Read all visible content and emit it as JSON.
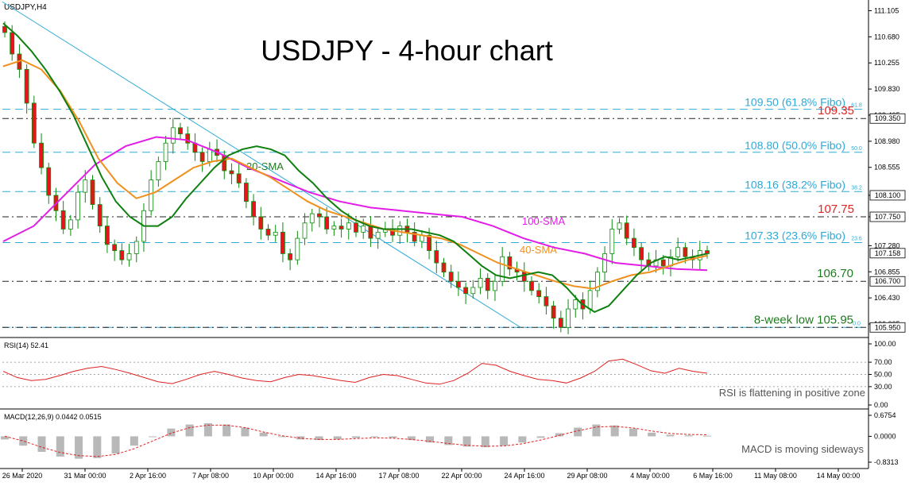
{
  "chart_data": {
    "type": "line",
    "symbol_label": "USDJPY,H4",
    "title": "USDJPY - 4-hour chart",
    "colors": {
      "candle_up": "#ffffff",
      "candle_down": "#e8141c",
      "candle_outline": "#0b8b0b",
      "sma20": "#0f7f0f",
      "sma40": "#f0901e",
      "sma100": "#e21ee6",
      "fibo": "#2eaad8",
      "trend": "#2eaad8",
      "level_red": "#e02525",
      "level_green": "#1e7b1e",
      "rsi": "#e02020",
      "macd_hist": "#b8b8b8",
      "macd_signal": "#e02020",
      "axis_text": "#000000"
    },
    "x_labels": [
      "26 Mar 2020",
      "31 Mar 00:00",
      "2 Apr 16:00",
      "7 Apr 08:00",
      "10 Apr 00:00",
      "14 Apr 16:00",
      "17 Apr 08:00",
      "22 Apr 00:00",
      "24 Apr 16:00",
      "29 Apr 08:00",
      "4 May 00:00",
      "6 May 16:00",
      "11 May 08:00",
      "14 May 00:00"
    ],
    "y_ticks": [
      "111.105",
      "110.680",
      "110.255",
      "109.830",
      "109.405",
      "108.980",
      "108.555",
      "108.100",
      "107.750",
      "107.280",
      "106.855",
      "106.430",
      "106.005"
    ],
    "y_ticks_values": [
      111.105,
      110.68,
      110.255,
      109.83,
      109.405,
      108.98,
      108.555,
      108.1,
      107.75,
      107.28,
      106.855,
      106.43,
      106.005
    ],
    "ylim": [
      105.85,
      111.15
    ],
    "price_tags": [
      "109.350",
      "108.100",
      "107.750",
      "107.158",
      "106.700",
      "105.950"
    ],
    "price_tags_values": [
      109.35,
      108.1,
      107.75,
      107.158,
      106.7,
      105.95
    ],
    "fibo_levels": [
      {
        "price": 109.5,
        "label": "109.50 (61.8% Fibo)",
        "tag": "61.8"
      },
      {
        "price": 108.8,
        "label": "108.80 (50.0% Fibo)",
        "tag": "50.0"
      },
      {
        "price": 108.16,
        "label": "108.16 (38.2% Fibo)",
        "tag": "38.2"
      },
      {
        "price": 107.33,
        "label": "107.33 (23.6% Fibo)",
        "tag": "23.6"
      },
      {
        "price": 105.95,
        "label": "",
        "tag": "0.0"
      }
    ],
    "levels": [
      {
        "price": 109.35,
        "label": "109.35",
        "color": "red"
      },
      {
        "price": 107.75,
        "label": "107.75",
        "color": "red"
      },
      {
        "price": 106.7,
        "label": "106.70",
        "color": "green"
      },
      {
        "price": 105.95,
        "label": "8-week low 105.95",
        "color": "green"
      }
    ],
    "sma_labels": [
      "20-SMA",
      "40-SMA",
      "100-SMA"
    ],
    "candles_close": [
      110.75,
      110.4,
      110.15,
      109.6,
      108.95,
      108.55,
      108.1,
      107.85,
      107.55,
      107.7,
      108.15,
      108.35,
      107.95,
      107.6,
      107.3,
      107.2,
      107.05,
      107.15,
      107.35,
      107.85,
      108.35,
      108.65,
      108.95,
      109.2,
      109.1,
      108.95,
      108.8,
      108.65,
      108.85,
      108.75,
      108.5,
      108.45,
      108.3,
      108.0,
      107.75,
      107.55,
      107.45,
      107.5,
      107.15,
      107.05,
      107.4,
      107.65,
      107.8,
      107.75,
      107.55,
      107.6,
      107.55,
      107.65,
      107.5,
      107.6,
      107.4,
      107.5,
      107.55,
      107.45,
      107.6,
      107.5,
      107.35,
      107.45,
      107.2,
      107.0,
      106.85,
      106.7,
      106.6,
      106.5,
      106.6,
      106.75,
      106.55,
      106.7,
      107.1,
      106.9,
      106.85,
      106.7,
      106.55,
      106.45,
      106.3,
      106.1,
      105.95,
      106.25,
      106.4,
      106.25,
      106.55,
      106.85,
      107.15,
      107.55,
      107.65,
      107.4,
      107.25,
      107.05,
      106.95,
      107.05,
      106.95,
      107.1,
      107.25,
      107.1,
      107.05,
      107.2,
      107.15
    ],
    "sma20_values": [
      110.9,
      110.7,
      110.45,
      110.15,
      109.8,
      109.4,
      108.9,
      108.4,
      108.0,
      107.75,
      107.6,
      107.6,
      107.75,
      108.05,
      108.3,
      108.55,
      108.75,
      108.85,
      108.9,
      108.85,
      108.75,
      108.5,
      108.3,
      108.05,
      107.85,
      107.7,
      107.6,
      107.55,
      107.55,
      107.55,
      107.5,
      107.45,
      107.35,
      107.15,
      106.95,
      106.8,
      106.75,
      106.8,
      106.85,
      106.8,
      106.6,
      106.35,
      106.2,
      106.3,
      106.55,
      106.8,
      107.0,
      107.1,
      107.05,
      107.1,
      107.15
    ],
    "sma40_values": [
      110.2,
      110.3,
      110.15,
      109.8,
      109.3,
      108.7,
      108.3,
      108.05,
      108.15,
      108.35,
      108.55,
      108.65,
      108.7,
      108.55,
      108.4,
      108.2,
      108.0,
      107.85,
      107.75,
      107.65,
      107.55,
      107.5,
      107.45,
      107.4,
      107.3,
      107.15,
      107.0,
      106.9,
      106.8,
      106.7,
      106.62,
      106.58,
      106.7,
      106.8,
      106.85,
      106.95,
      107.05,
      107.12
    ],
    "sma100_values": [
      107.35,
      107.6,
      108.1,
      108.6,
      108.9,
      109.05,
      109.0,
      108.8,
      108.55,
      108.35,
      108.15,
      108.0,
      107.9,
      107.85,
      107.8,
      107.75,
      107.6,
      107.4,
      107.25,
      107.15,
      107.0,
      106.95,
      106.9,
      106.88
    ],
    "trendline": [
      [
        0.0,
        111.25
      ],
      [
        0.6,
        105.95
      ]
    ],
    "rsi": {
      "label": "RSI(14) 52.41",
      "ticks": [
        "100.00",
        "70.00",
        "50.00",
        "30.00",
        "0.00"
      ],
      "ticks_values": [
        100,
        70,
        50,
        30,
        0
      ],
      "values": [
        55,
        45,
        40,
        42,
        48,
        55,
        60,
        63,
        58,
        52,
        45,
        38,
        35,
        42,
        50,
        55,
        50,
        44,
        40,
        38,
        45,
        50,
        48,
        44,
        40,
        37,
        45,
        50,
        48,
        42,
        36,
        34,
        40,
        52,
        68,
        65,
        55,
        48,
        42,
        40,
        36,
        44,
        55,
        72,
        75,
        66,
        56,
        52,
        60,
        55,
        52
      ],
      "annotation": "RSI is flattening in positive zone"
    },
    "macd": {
      "label": "MACD(12,26,9) 0.0442 0.0515",
      "ticks": [
        "0.6754",
        "0.0000",
        "-0.8313"
      ],
      "ticks_values": [
        0.6754,
        0.0,
        -0.8313
      ],
      "histogram": [
        -0.1,
        -0.3,
        -0.5,
        -0.65,
        -0.72,
        -0.7,
        -0.55,
        -0.3,
        0.0,
        0.25,
        0.38,
        0.42,
        0.38,
        0.28,
        0.12,
        -0.02,
        -0.1,
        -0.12,
        -0.1,
        -0.05,
        -0.03,
        -0.05,
        -0.12,
        -0.2,
        -0.28,
        -0.33,
        -0.35,
        -0.3,
        -0.2,
        -0.05,
        0.1,
        0.28,
        0.38,
        0.35,
        0.25,
        0.12,
        0.05,
        0.03,
        0.02
      ],
      "signal": [
        0.0,
        -0.15,
        -0.35,
        -0.52,
        -0.62,
        -0.65,
        -0.58,
        -0.4,
        -0.15,
        0.1,
        0.28,
        0.36,
        0.36,
        0.28,
        0.14,
        0.02,
        -0.06,
        -0.1,
        -0.1,
        -0.07,
        -0.05,
        -0.06,
        -0.1,
        -0.16,
        -0.23,
        -0.29,
        -0.32,
        -0.31,
        -0.24,
        -0.12,
        0.03,
        0.18,
        0.3,
        0.32,
        0.27,
        0.17,
        0.09,
        0.06,
        0.05
      ],
      "annotation": "MACD is moving sideways"
    }
  }
}
